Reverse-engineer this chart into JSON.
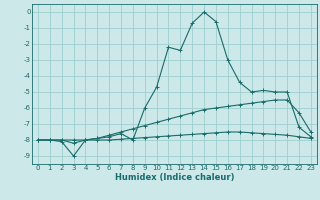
{
  "title": "",
  "xlabel": "Humidex (Indice chaleur)",
  "ylabel": "",
  "bg_color": "#cce8e8",
  "grid_color": "#9ecece",
  "line_color": "#1a6b6b",
  "xlim": [
    -0.5,
    23.5
  ],
  "ylim": [
    -9.5,
    0.5
  ],
  "yticks": [
    0,
    -1,
    -2,
    -3,
    -4,
    -5,
    -6,
    -7,
    -8,
    -9
  ],
  "xticks": [
    0,
    1,
    2,
    3,
    4,
    5,
    6,
    7,
    8,
    9,
    10,
    11,
    12,
    13,
    14,
    15,
    16,
    17,
    18,
    19,
    20,
    21,
    22,
    23
  ],
  "curve1_x": [
    0,
    1,
    2,
    3,
    4,
    5,
    6,
    7,
    8,
    9,
    10,
    11,
    12,
    13,
    14,
    15,
    16,
    17,
    18,
    19,
    20,
    21,
    22,
    23
  ],
  "curve1_y": [
    -8.0,
    -8.0,
    -8.1,
    -9.0,
    -8.0,
    -7.9,
    -7.8,
    -7.6,
    -8.0,
    -6.0,
    -4.7,
    -2.2,
    -2.4,
    -0.7,
    0.0,
    -0.6,
    -3.0,
    -4.4,
    -5.0,
    -4.9,
    -5.0,
    -5.0,
    -7.2,
    -7.8
  ],
  "curve2_x": [
    0,
    1,
    2,
    3,
    4,
    5,
    6,
    7,
    8,
    9,
    10,
    11,
    12,
    13,
    14,
    15,
    16,
    17,
    18,
    19,
    20,
    21,
    22,
    23
  ],
  "curve2_y": [
    -8.0,
    -8.0,
    -8.0,
    -8.2,
    -8.0,
    -7.9,
    -7.7,
    -7.5,
    -7.3,
    -7.1,
    -6.9,
    -6.7,
    -6.5,
    -6.3,
    -6.1,
    -6.0,
    -5.9,
    -5.8,
    -5.7,
    -5.6,
    -5.5,
    -5.5,
    -6.3,
    -7.5
  ],
  "curve3_x": [
    0,
    1,
    2,
    3,
    4,
    5,
    6,
    7,
    8,
    9,
    10,
    11,
    12,
    13,
    14,
    15,
    16,
    17,
    18,
    19,
    20,
    21,
    22,
    23
  ],
  "curve3_y": [
    -8.0,
    -8.0,
    -8.0,
    -8.0,
    -8.0,
    -8.0,
    -8.0,
    -7.95,
    -7.9,
    -7.85,
    -7.8,
    -7.75,
    -7.7,
    -7.65,
    -7.6,
    -7.55,
    -7.5,
    -7.5,
    -7.55,
    -7.6,
    -7.65,
    -7.7,
    -7.8,
    -7.9
  ]
}
